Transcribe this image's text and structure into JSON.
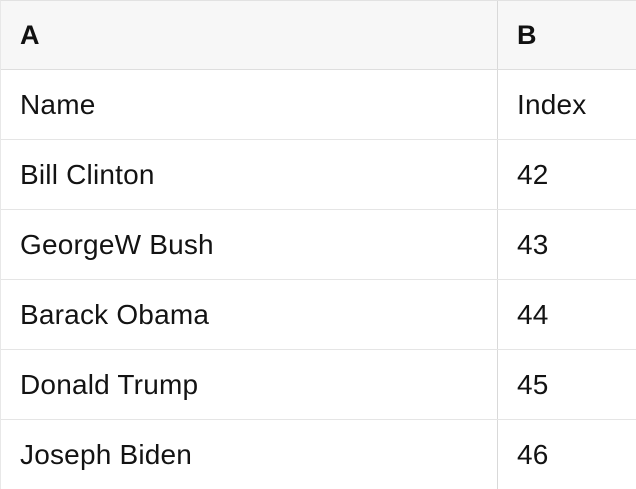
{
  "table": {
    "columns": [
      {
        "letter": "A"
      },
      {
        "letter": "B"
      }
    ],
    "rows": [
      {
        "a": "Name",
        "b": "Index"
      },
      {
        "a": "Bill Clinton",
        "b": "42"
      },
      {
        "a": "GeorgeW Bush",
        "b": "43"
      },
      {
        "a": "Barack Obama",
        "b": "44"
      },
      {
        "a": "Donald Trump",
        "b": "45"
      },
      {
        "a": "Joseph Biden",
        "b": "46"
      }
    ],
    "colors": {
      "header_background": "#f7f7f7",
      "row_background": "#ffffff",
      "border": "#e5e5e5",
      "column_divider": "#d9d9d9",
      "text": "#131313"
    }
  }
}
